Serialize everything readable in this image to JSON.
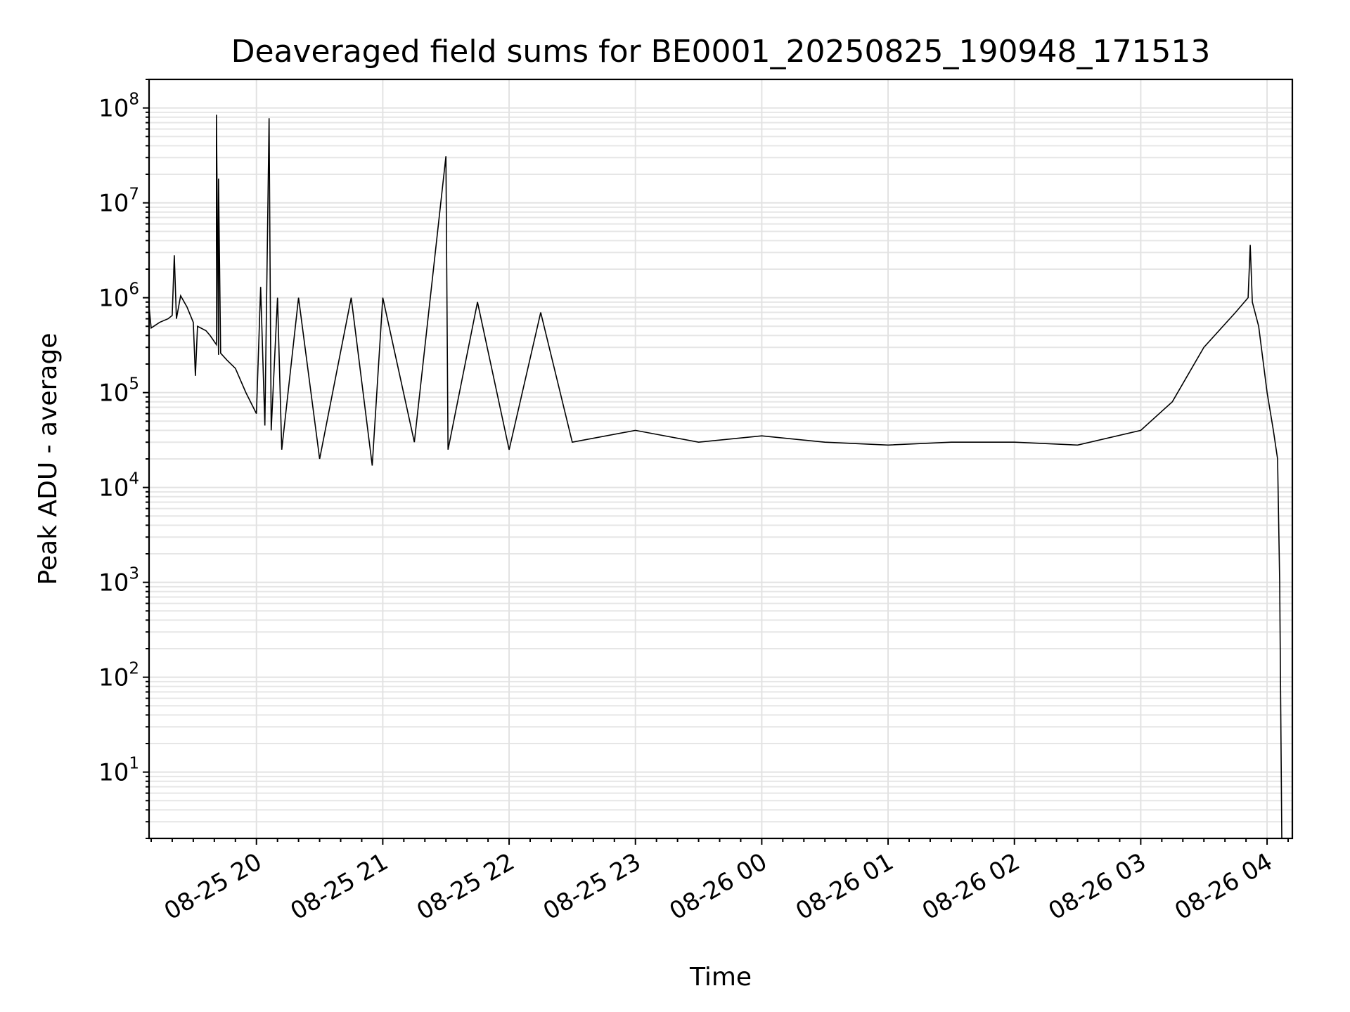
{
  "chart_data": {
    "type": "line",
    "title": "Deaveraged field sums for BE0001_20250825_190948_171513",
    "xlabel": "Time",
    "ylabel": "Peak ADU - average",
    "yscale": "log",
    "ylim": [
      2,
      200000000
    ],
    "xlim": [
      "2025-08-25 19:09",
      "2025-08-26 04:12"
    ],
    "grid": "on (major and minor)",
    "legend": "none",
    "line_color": "#000000",
    "x_tick_labels": [
      "08-25 20",
      "08-25 21",
      "08-25 22",
      "08-25 23",
      "08-26 00",
      "08-26 01",
      "08-26 02",
      "08-26 03",
      "08-26 04"
    ],
    "x_ticks": [
      "2025-08-25 20:00",
      "2025-08-25 21:00",
      "2025-08-25 22:00",
      "2025-08-25 23:00",
      "2025-08-26 00:00",
      "2025-08-26 01:00",
      "2025-08-26 02:00",
      "2025-08-26 03:00",
      "2025-08-26 04:00"
    ],
    "y_ticks": [
      {
        "value": 10,
        "base": "10",
        "exp": "1"
      },
      {
        "value": 100,
        "base": "10",
        "exp": "2"
      },
      {
        "value": 1000,
        "base": "10",
        "exp": "3"
      },
      {
        "value": 10000,
        "base": "10",
        "exp": "4"
      },
      {
        "value": 100000,
        "base": "10",
        "exp": "5"
      },
      {
        "value": 1000000,
        "base": "10",
        "exp": "6"
      },
      {
        "value": 10000000,
        "base": "10",
        "exp": "7"
      },
      {
        "value": 100000000,
        "base": "10",
        "exp": "8"
      }
    ],
    "series": [
      {
        "points": [
          [
            "2025-08-25 19:09",
            800000
          ],
          [
            "2025-08-25 19:10",
            480000
          ],
          [
            "2025-08-25 19:14",
            550000
          ],
          [
            "2025-08-25 19:18",
            600000
          ],
          [
            "2025-08-25 19:20",
            650000
          ],
          [
            "2025-08-25 19:21",
            2800000
          ],
          [
            "2025-08-25 19:22",
            600000
          ],
          [
            "2025-08-25 19:24",
            1050000
          ],
          [
            "2025-08-25 19:27",
            800000
          ],
          [
            "2025-08-25 19:30",
            550000
          ],
          [
            "2025-08-25 19:31",
            150000
          ],
          [
            "2025-08-25 19:32",
            500000
          ],
          [
            "2025-08-25 19:36",
            450000
          ],
          [
            "2025-08-25 19:38",
            400000
          ],
          [
            "2025-08-25 19:41",
            320000
          ],
          [
            "2025-08-25 19:41",
            85000000
          ],
          [
            "2025-08-25 19:42",
            250000
          ],
          [
            "2025-08-25 19:42",
            18000000
          ],
          [
            "2025-08-25 19:43",
            260000
          ],
          [
            "2025-08-25 19:46",
            220000
          ],
          [
            "2025-08-25 19:50",
            180000
          ],
          [
            "2025-08-25 19:55",
            100000
          ],
          [
            "2025-08-25 20:00",
            60000
          ],
          [
            "2025-08-25 20:02",
            1300000
          ],
          [
            "2025-08-25 20:04",
            45000
          ],
          [
            "2025-08-25 20:06",
            78000000
          ],
          [
            "2025-08-25 20:07",
            40000
          ],
          [
            "2025-08-25 20:10",
            1000000
          ],
          [
            "2025-08-25 20:12",
            25000
          ],
          [
            "2025-08-25 20:20",
            1000000
          ],
          [
            "2025-08-25 20:30",
            20000
          ],
          [
            "2025-08-25 20:45",
            1000000
          ],
          [
            "2025-08-25 20:55",
            17000
          ],
          [
            "2025-08-25 21:00",
            1000000
          ],
          [
            "2025-08-25 21:15",
            30000
          ],
          [
            "2025-08-25 21:30",
            31000000
          ],
          [
            "2025-08-25 21:31",
            25000
          ],
          [
            "2025-08-25 21:45",
            900000
          ],
          [
            "2025-08-25 22:00",
            25000
          ],
          [
            "2025-08-25 22:15",
            700000
          ],
          [
            "2025-08-25 22:30",
            30000
          ],
          [
            "2025-08-25 23:00",
            40000
          ],
          [
            "2025-08-25 23:30",
            30000
          ],
          [
            "2025-08-26 00:00",
            35000
          ],
          [
            "2025-08-26 00:30",
            30000
          ],
          [
            "2025-08-26 01:00",
            28000
          ],
          [
            "2025-08-26 01:30",
            30000
          ],
          [
            "2025-08-26 02:00",
            30000
          ],
          [
            "2025-08-26 02:30",
            28000
          ],
          [
            "2025-08-26 03:00",
            40000
          ],
          [
            "2025-08-26 03:15",
            80000
          ],
          [
            "2025-08-26 03:30",
            300000
          ],
          [
            "2025-08-26 03:45",
            700000
          ],
          [
            "2025-08-26 03:51",
            1000000
          ],
          [
            "2025-08-26 03:52",
            3600000
          ],
          [
            "2025-08-26 03:53",
            900000
          ],
          [
            "2025-08-26 03:56",
            500000
          ],
          [
            "2025-08-26 04:00",
            100000
          ],
          [
            "2025-08-26 04:03",
            40000
          ],
          [
            "2025-08-26 04:05",
            20000
          ],
          [
            "2025-08-26 04:06",
            1000
          ],
          [
            "2025-08-26 04:07",
            2
          ]
        ]
      }
    ]
  }
}
